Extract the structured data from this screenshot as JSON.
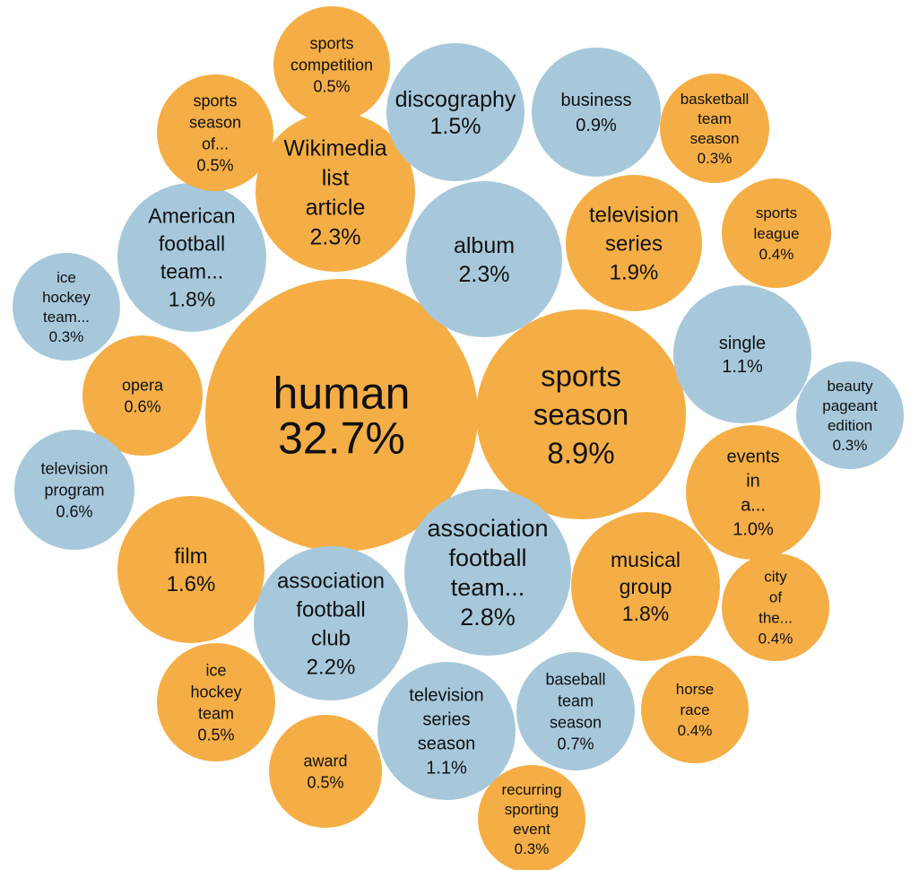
{
  "chart_data": {
    "type": "bubble",
    "title": "",
    "legend": "none",
    "colors": {
      "orange": "#f5ae45",
      "blue": "#a7c8db"
    },
    "bubbles": [
      {
        "lines": [
          "human",
          "32.7%"
        ],
        "value": 32.7,
        "color": "orange"
      },
      {
        "lines": [
          "sports",
          "season",
          "8.9%"
        ],
        "value": 8.9,
        "color": "orange"
      },
      {
        "lines": [
          "association",
          "football",
          "team...",
          "2.8%"
        ],
        "value": 2.8,
        "color": "blue"
      },
      {
        "lines": [
          "Wikimedia",
          "list",
          "article",
          "2.3%"
        ],
        "value": 2.3,
        "color": "orange"
      },
      {
        "lines": [
          "album",
          "2.3%"
        ],
        "value": 2.3,
        "color": "blue"
      },
      {
        "lines": [
          "association",
          "football",
          "club",
          "2.2%"
        ],
        "value": 2.2,
        "color": "blue"
      },
      {
        "lines": [
          "television",
          "series",
          "1.9%"
        ],
        "value": 1.9,
        "color": "orange"
      },
      {
        "lines": [
          "American",
          "football",
          "team...",
          "1.8%"
        ],
        "value": 1.8,
        "color": "blue"
      },
      {
        "lines": [
          "musical",
          "group",
          "1.8%"
        ],
        "value": 1.8,
        "color": "orange"
      },
      {
        "lines": [
          "film",
          "1.6%"
        ],
        "value": 1.6,
        "color": "orange"
      },
      {
        "lines": [
          "discography",
          "1.5%"
        ],
        "value": 1.5,
        "color": "blue"
      },
      {
        "lines": [
          "single",
          "1.1%"
        ],
        "value": 1.1,
        "color": "blue"
      },
      {
        "lines": [
          "television",
          "series",
          "season",
          "1.1%"
        ],
        "value": 1.1,
        "color": "blue"
      },
      {
        "lines": [
          "events",
          "in",
          "a...",
          "1.0%"
        ],
        "value": 1.0,
        "color": "orange"
      },
      {
        "lines": [
          "business",
          "0.9%"
        ],
        "value": 0.9,
        "color": "blue"
      },
      {
        "lines": [
          "baseball",
          "team",
          "season",
          "0.7%"
        ],
        "value": 0.7,
        "color": "blue"
      },
      {
        "lines": [
          "opera",
          "0.6%"
        ],
        "value": 0.6,
        "color": "orange"
      },
      {
        "lines": [
          "television",
          "program",
          "0.6%"
        ],
        "value": 0.6,
        "color": "blue"
      },
      {
        "lines": [
          "sports",
          "competition",
          "0.5%"
        ],
        "value": 0.5,
        "color": "orange"
      },
      {
        "lines": [
          "sports",
          "season",
          "of...",
          "0.5%"
        ],
        "value": 0.5,
        "color": "orange"
      },
      {
        "lines": [
          "ice",
          "hockey",
          "team",
          "0.5%"
        ],
        "value": 0.5,
        "color": "orange"
      },
      {
        "lines": [
          "award",
          "0.5%"
        ],
        "value": 0.5,
        "color": "orange"
      },
      {
        "lines": [
          "sports",
          "league",
          "0.4%"
        ],
        "value": 0.4,
        "color": "orange"
      },
      {
        "lines": [
          "city",
          "of",
          "the...",
          "0.4%"
        ],
        "value": 0.4,
        "color": "orange"
      },
      {
        "lines": [
          "horse",
          "race",
          "0.4%"
        ],
        "value": 0.4,
        "color": "orange"
      },
      {
        "lines": [
          "basketball",
          "team",
          "season",
          "0.3%"
        ],
        "value": 0.3,
        "color": "orange"
      },
      {
        "lines": [
          "ice",
          "hockey",
          "team...",
          "0.3%"
        ],
        "value": 0.3,
        "color": "blue"
      },
      {
        "lines": [
          "beauty",
          "pageant",
          "edition",
          "0.3%"
        ],
        "value": 0.3,
        "color": "blue"
      },
      {
        "lines": [
          "recurring",
          "sporting",
          "event",
          "0.3%"
        ],
        "value": 0.3,
        "color": "orange"
      }
    ]
  }
}
